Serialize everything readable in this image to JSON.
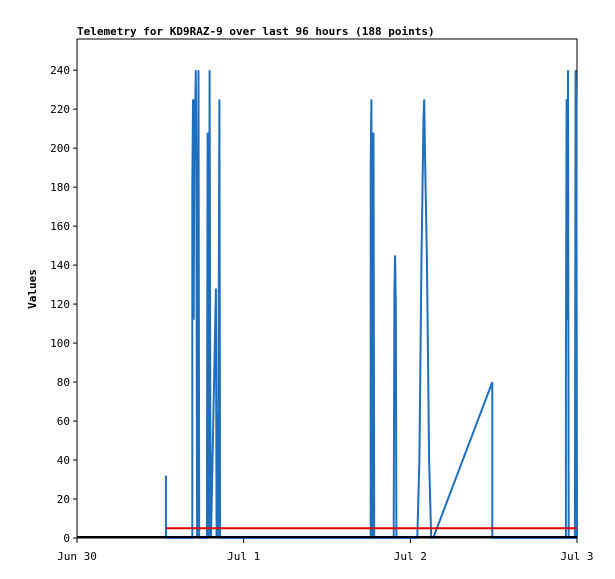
{
  "chart_data": {
    "type": "line",
    "title": "Telemetry for KD9RAZ-9 over last 96 hours (188 points)",
    "ylabel": "Values",
    "xlabel": "",
    "x_unit": "hours since Jun 30 00:00",
    "xlim": [
      0,
      72
    ],
    "ylim": [
      0,
      256
    ],
    "x_ticks": [
      {
        "label": "Jun 30",
        "x": 0
      },
      {
        "label": "Jul 1",
        "x": 24
      },
      {
        "label": "Jul 2",
        "x": 48
      },
      {
        "label": "Jul 3",
        "x": 72
      }
    ],
    "y_ticks": [
      0,
      20,
      40,
      60,
      80,
      100,
      120,
      140,
      160,
      180,
      200,
      220,
      240
    ],
    "grid": false,
    "series": [
      {
        "name": "",
        "color": "#1f6fbf",
        "points": [
          [
            12.8,
            0
          ],
          [
            12.8,
            32
          ],
          [
            12.8,
            0
          ],
          [
            16.6,
            0
          ],
          [
            16.6,
            178
          ],
          [
            16.7,
            225
          ],
          [
            16.8,
            112
          ],
          [
            16.9,
            225
          ],
          [
            17.0,
            218
          ],
          [
            17.1,
            240
          ],
          [
            17.2,
            182
          ],
          [
            17.3,
            0
          ],
          [
            17.4,
            120
          ],
          [
            17.5,
            240
          ],
          [
            17.6,
            0
          ],
          [
            18.7,
            0
          ],
          [
            18.8,
            208
          ],
          [
            18.9,
            80
          ],
          [
            19.0,
            0
          ],
          [
            19.1,
            240
          ],
          [
            19.2,
            60
          ],
          [
            19.3,
            0
          ],
          [
            20.0,
            128
          ],
          [
            20.1,
            0
          ],
          [
            20.2,
            64
          ],
          [
            20.3,
            0
          ],
          [
            20.5,
            225
          ],
          [
            20.6,
            0
          ],
          [
            42.3,
            0
          ],
          [
            42.3,
            192
          ],
          [
            42.4,
            225
          ],
          [
            42.5,
            0
          ],
          [
            42.7,
            208
          ],
          [
            42.8,
            0
          ],
          [
            45.6,
            0
          ],
          [
            45.7,
            126
          ],
          [
            45.8,
            145
          ],
          [
            45.9,
            120
          ],
          [
            46.0,
            0
          ],
          [
            49.0,
            0
          ],
          [
            49.3,
            40
          ],
          [
            49.6,
            140
          ],
          [
            49.9,
            215
          ],
          [
            50.0,
            225
          ],
          [
            50.1,
            200
          ],
          [
            50.4,
            140
          ],
          [
            50.7,
            40
          ],
          [
            51.0,
            0
          ],
          [
            51.3,
            0
          ],
          [
            59.8,
            80
          ],
          [
            59.8,
            0
          ],
          [
            70.4,
            0
          ],
          [
            70.4,
            80
          ],
          [
            70.5,
            225
          ],
          [
            70.6,
            112
          ],
          [
            70.7,
            240
          ],
          [
            70.8,
            0
          ],
          [
            71.7,
            0
          ],
          [
            71.8,
            240
          ],
          [
            71.9,
            225
          ],
          [
            72.0,
            0
          ]
        ]
      },
      {
        "name": "",
        "color": "#e00000",
        "points": [
          [
            12.8,
            5
          ],
          [
            72.0,
            5
          ]
        ]
      },
      {
        "name": "",
        "color": "#000000",
        "points": [
          [
            0,
            0.5
          ],
          [
            72.0,
            0.5
          ]
        ]
      }
    ]
  }
}
